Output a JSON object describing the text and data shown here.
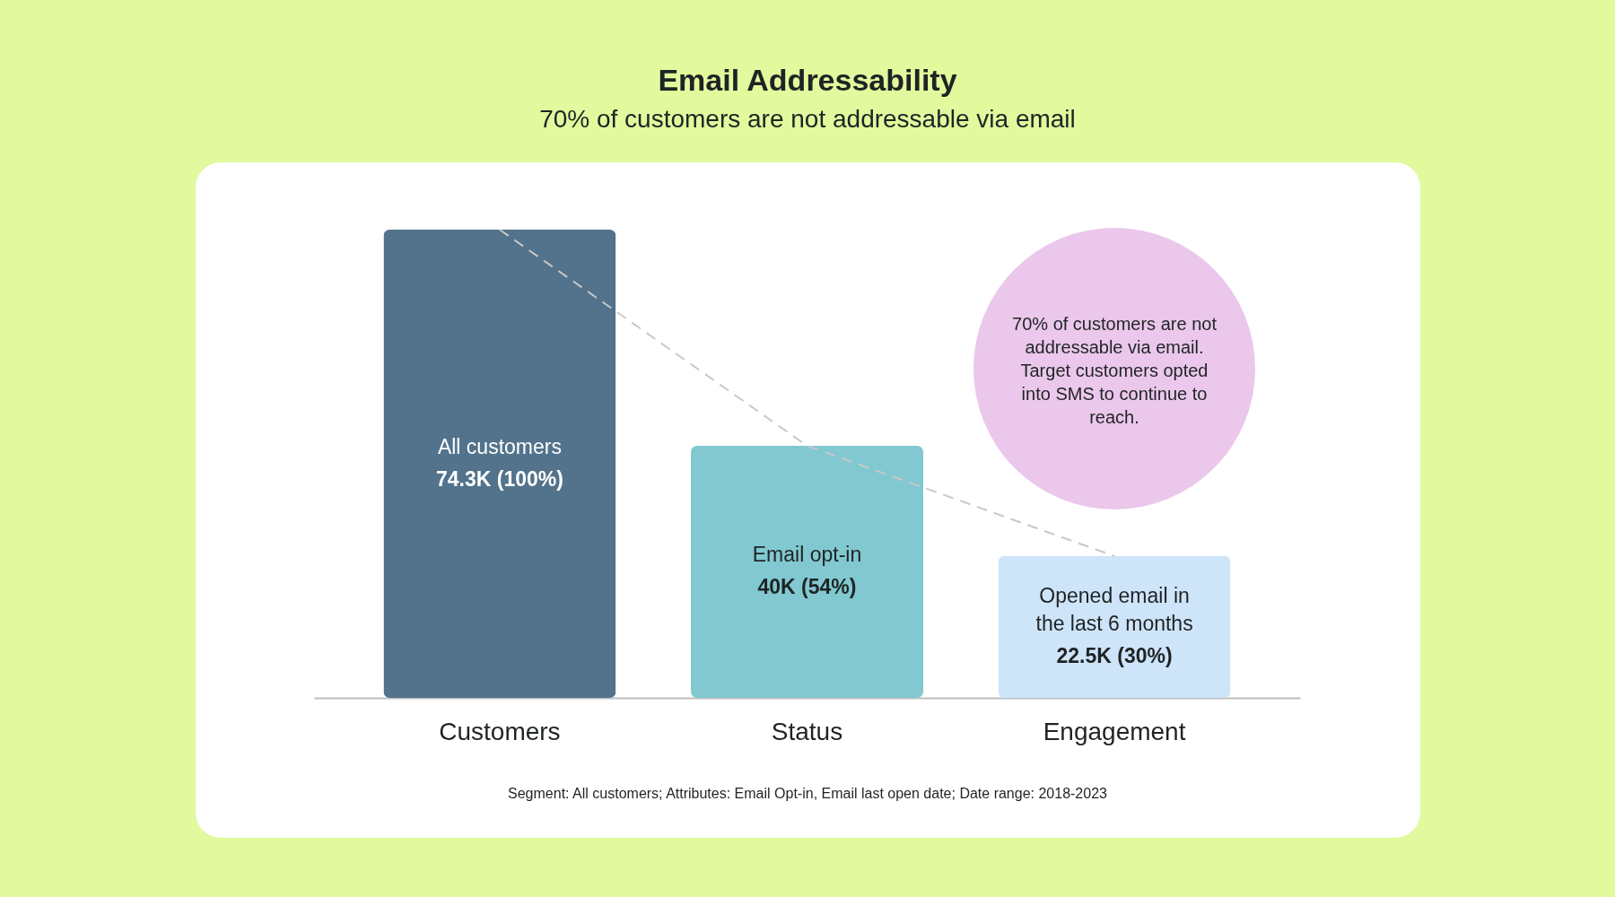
{
  "chart_data": {
    "type": "bar",
    "title": "Email Addressability",
    "subtitle": "70% of customers are not addressable via email",
    "categories": [
      "Customers",
      "Status",
      "Engagement"
    ],
    "series": [
      {
        "values": [
          74300,
          40000,
          22500
        ],
        "colors": [
          "#52738b",
          "#82c8d1",
          "#cde4f9"
        ],
        "value_labels": [
          "74.3K (100%)",
          "40K (54%)",
          "22.5K (30%)"
        ]
      },
      {
        "type": "line",
        "values": [
          74300,
          40000,
          22500
        ],
        "color": "#c9c9c9",
        "line_style": "dashed"
      }
    ],
    "annotations": [
      "All customers",
      "Email opt-in",
      "Opened email in the last 6 months",
      "70% of customers are not addressable via email. Target customers opted into SMS to continue to reach.",
      "Segment: All customers; Attributes: Email Opt-in, Email last open date; Date range: 2018-2023"
    ]
  }
}
